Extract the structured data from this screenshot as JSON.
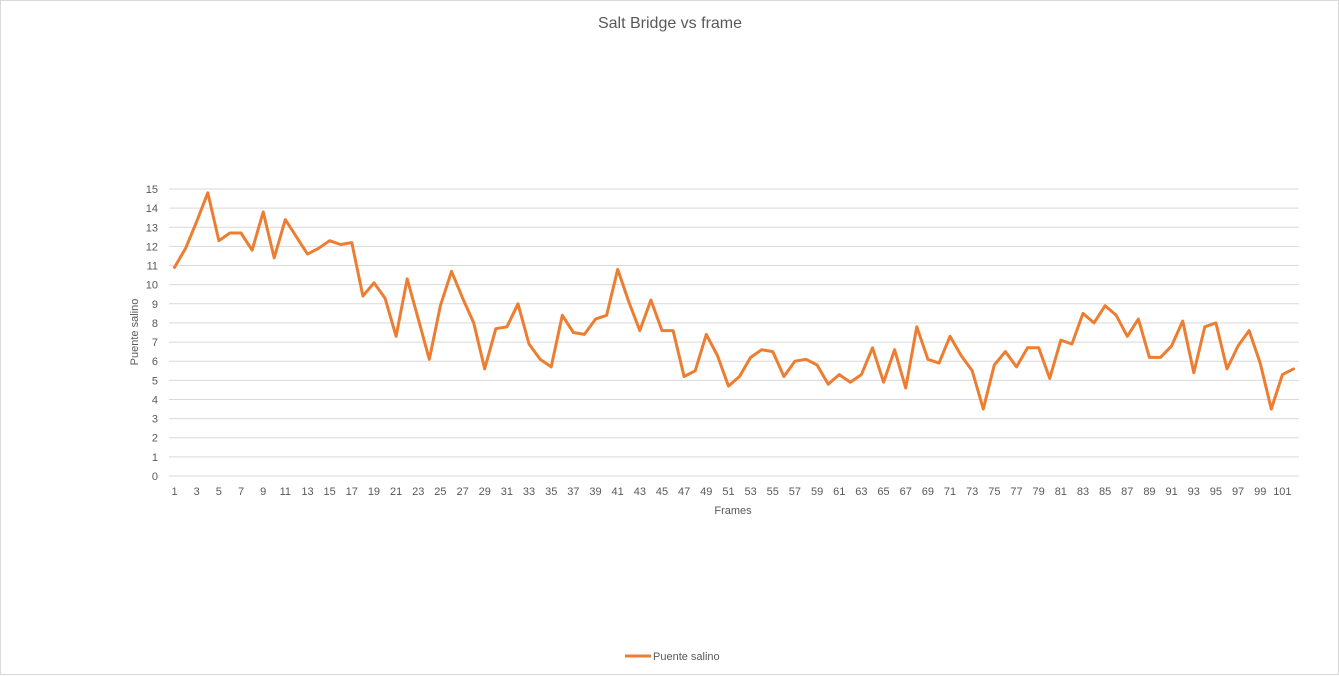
{
  "chart_data": {
    "type": "line",
    "title": "Salt Bridge vs frame",
    "xlabel": "Frames",
    "ylabel": "Puente salino",
    "ylim": [
      0,
      15
    ],
    "y_ticks": [
      0,
      1,
      2,
      3,
      4,
      5,
      6,
      7,
      8,
      9,
      10,
      11,
      12,
      13,
      14,
      15
    ],
    "x_tick_labels": [
      "1",
      "3",
      "5",
      "7",
      "9",
      "11",
      "13",
      "15",
      "17",
      "19",
      "21",
      "23",
      "25",
      "27",
      "29",
      "31",
      "33",
      "35",
      "37",
      "39",
      "41",
      "43",
      "45",
      "47",
      "49",
      "51",
      "53",
      "55",
      "57",
      "59",
      "61",
      "63",
      "65",
      "67",
      "69",
      "71",
      "73",
      "75",
      "77",
      "79",
      "81",
      "83",
      "85",
      "87",
      "89",
      "91",
      "93",
      "95",
      "97",
      "99",
      "101"
    ],
    "grid": "horizontal",
    "legend_position": "bottom",
    "series_color": "#ED7D31",
    "x": [
      1,
      2,
      3,
      4,
      5,
      6,
      7,
      8,
      9,
      10,
      11,
      12,
      13,
      14,
      15,
      16,
      17,
      18,
      19,
      20,
      21,
      22,
      23,
      24,
      25,
      26,
      27,
      28,
      29,
      30,
      31,
      32,
      33,
      34,
      35,
      36,
      37,
      38,
      39,
      40,
      41,
      42,
      43,
      44,
      45,
      46,
      47,
      48,
      49,
      50,
      51,
      52,
      53,
      54,
      55,
      56,
      57,
      58,
      59,
      60,
      61,
      62,
      63,
      64,
      65,
      66,
      67,
      68,
      69,
      70,
      71,
      72,
      73,
      74,
      75,
      76,
      77,
      78,
      79,
      80,
      81,
      82,
      83,
      84,
      85,
      86,
      87,
      88,
      89,
      90,
      91,
      92,
      93,
      94,
      95,
      96,
      97,
      98,
      99,
      100,
      101,
      102
    ],
    "series": [
      {
        "name": "Puente salino",
        "values": [
          10.9,
          11.9,
          13.3,
          14.8,
          12.3,
          12.7,
          12.7,
          11.8,
          13.8,
          11.4,
          13.4,
          12.5,
          11.6,
          11.9,
          12.3,
          12.1,
          12.2,
          9.4,
          10.1,
          9.3,
          7.3,
          10.3,
          8.2,
          6.1,
          8.9,
          10.7,
          9.3,
          8.0,
          5.6,
          7.7,
          7.8,
          9.0,
          6.9,
          6.1,
          5.7,
          8.4,
          7.5,
          7.4,
          8.2,
          8.4,
          10.8,
          9.1,
          7.6,
          9.2,
          7.6,
          7.6,
          5.2,
          5.5,
          7.4,
          6.3,
          4.7,
          5.2,
          6.2,
          6.6,
          6.5,
          5.2,
          6.0,
          6.1,
          5.8,
          4.8,
          5.3,
          4.9,
          5.3,
          6.7,
          4.9,
          6.6,
          4.6,
          7.8,
          6.1,
          5.9,
          7.3,
          6.3,
          5.5,
          3.5,
          5.8,
          6.5,
          5.7,
          6.7,
          6.7,
          5.1,
          7.1,
          6.9,
          8.5,
          8.0,
          8.9,
          8.4,
          7.3,
          8.2,
          6.2,
          6.2,
          6.8,
          8.1,
          5.4,
          7.8,
          8.0,
          5.6,
          6.8,
          7.6,
          5.9,
          3.5,
          5.3,
          5.6
        ]
      }
    ]
  }
}
